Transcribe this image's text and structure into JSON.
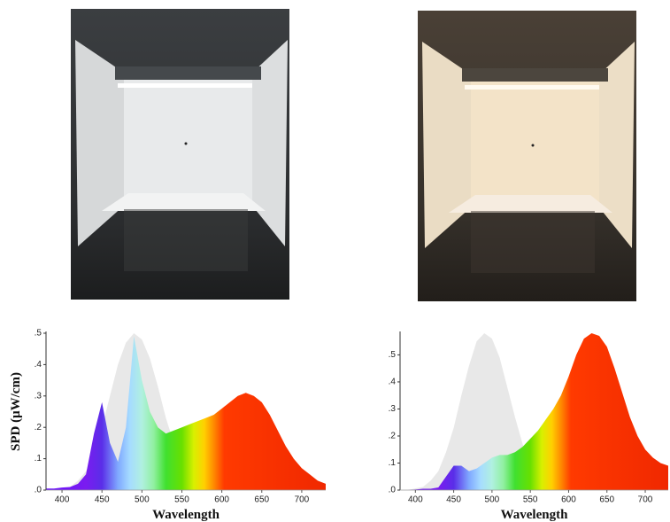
{
  "chart_data": [
    {
      "type": "area",
      "x": [
        380,
        390,
        400,
        410,
        420,
        430,
        440,
        450,
        460,
        470,
        480,
        490,
        500,
        510,
        520,
        530,
        540,
        550,
        560,
        570,
        580,
        590,
        600,
        610,
        620,
        630,
        640,
        650,
        660,
        670,
        680,
        690,
        700,
        710,
        720,
        730
      ],
      "series": [
        {
          "color": "#e8e8e8",
          "values": [
            0,
            0,
            0.005,
            0.01,
            0.03,
            0.06,
            0.12,
            0.2,
            0.3,
            0.4,
            0.47,
            0.5,
            0.48,
            0.42,
            0.33,
            0.23,
            0.15,
            0.09,
            0.05,
            0.03,
            0.015,
            0.008,
            0.004,
            0,
            0,
            0,
            0,
            0,
            0,
            0,
            0,
            0,
            0,
            0,
            0,
            0
          ]
        },
        {
          "values": [
            0.005,
            0.005,
            0.008,
            0.01,
            0.02,
            0.05,
            0.18,
            0.28,
            0.15,
            0.09,
            0.2,
            0.49,
            0.35,
            0.25,
            0.2,
            0.18,
            0.19,
            0.2,
            0.21,
            0.22,
            0.23,
            0.24,
            0.26,
            0.28,
            0.3,
            0.31,
            0.3,
            0.28,
            0.24,
            0.19,
            0.14,
            0.1,
            0.07,
            0.05,
            0.03,
            0.02
          ]
        }
      ],
      "xlim": [
        380,
        730
      ],
      "xticks": [
        400,
        450,
        500,
        550,
        600,
        650,
        700
      ],
      "ylim": [
        0,
        0.5
      ],
      "yticks": [
        {
          "value": 0,
          "label": ".0"
        },
        {
          "value": 0.1,
          "label": ".1"
        },
        {
          "value": 0.2,
          "label": ".2"
        },
        {
          "value": 0.3,
          "label": ".3"
        },
        {
          "value": 0.4,
          "label": ".4"
        },
        {
          "value": 0.5,
          "label": ".5"
        }
      ],
      "y_label": "SPD (μW/cm)",
      "x_label": "Wavelength"
    },
    {
      "type": "area",
      "x": [
        380,
        390,
        400,
        410,
        420,
        430,
        440,
        450,
        460,
        470,
        480,
        490,
        500,
        510,
        520,
        530,
        540,
        550,
        560,
        570,
        580,
        590,
        600,
        610,
        620,
        630,
        640,
        650,
        660,
        670,
        680,
        690,
        700,
        710,
        720,
        730
      ],
      "series": [
        {
          "color": "#e8e8e8",
          "values": [
            0,
            0,
            0.006,
            0.012,
            0.035,
            0.07,
            0.14,
            0.23,
            0.35,
            0.46,
            0.55,
            0.58,
            0.56,
            0.49,
            0.38,
            0.27,
            0.17,
            0.1,
            0.06,
            0.035,
            0.017,
            0.009,
            0.005,
            0,
            0,
            0,
            0,
            0,
            0,
            0,
            0,
            0,
            0,
            0,
            0,
            0
          ]
        },
        {
          "values": [
            0,
            0,
            0.002,
            0.005,
            0.005,
            0.01,
            0.05,
            0.09,
            0.09,
            0.07,
            0.08,
            0.1,
            0.12,
            0.13,
            0.13,
            0.14,
            0.16,
            0.19,
            0.22,
            0.26,
            0.3,
            0.35,
            0.42,
            0.5,
            0.56,
            0.58,
            0.57,
            0.53,
            0.45,
            0.36,
            0.27,
            0.2,
            0.15,
            0.12,
            0.1,
            0.09
          ]
        }
      ],
      "xlim": [
        380,
        730
      ],
      "xticks": [
        400,
        450,
        500,
        550,
        600,
        650,
        700
      ],
      "ylim": [
        0,
        0.58
      ],
      "yticks": [
        {
          "value": 0,
          "label": ".0"
        },
        {
          "value": 0.1,
          "label": ".1"
        },
        {
          "value": 0.2,
          "label": ".2"
        },
        {
          "value": 0.3,
          "label": ".3"
        },
        {
          "value": 0.4,
          "label": ".4"
        },
        {
          "value": 0.5,
          "label": ".5"
        }
      ],
      "x_label": "Wavelength"
    }
  ]
}
